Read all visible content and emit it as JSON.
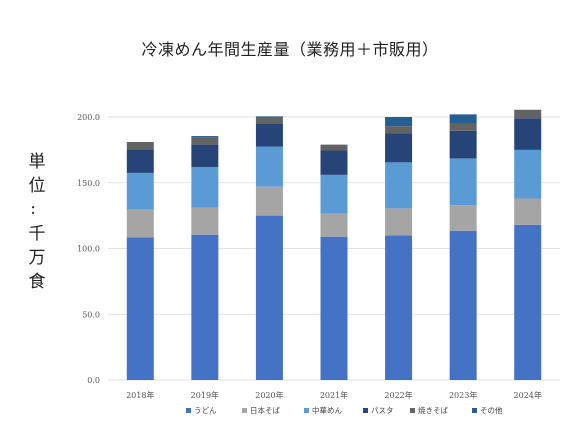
{
  "chart_data": {
    "type": "bar",
    "stacked": true,
    "title": "冷凍めん年間生産量（業務用＋市販用）",
    "ylabel": "単位：千万食",
    "categories": [
      "2018年",
      "2019年",
      "2020年",
      "2021年",
      "2022年",
      "2023年",
      "2024年"
    ],
    "ylim": [
      0,
      200
    ],
    "yticks": [
      "0.0",
      "50.0",
      "100.0",
      "150.0",
      "200.0"
    ],
    "grid": true,
    "legend_position": "bottom",
    "series": [
      {
        "name": "うどん",
        "color": "#4472c4",
        "values": [
          108.5,
          110.5,
          125.0,
          109.0,
          110.0,
          113.5,
          118.0
        ]
      },
      {
        "name": "日本そば",
        "color": "#a5a5a5",
        "values": [
          21.0,
          20.5,
          22.0,
          17.5,
          20.5,
          19.5,
          20.0
        ]
      },
      {
        "name": "中華めん",
        "color": "#5b9bd5",
        "values": [
          28.0,
          31.0,
          30.5,
          29.5,
          35.0,
          35.5,
          37.0
        ]
      },
      {
        "name": "パスタ",
        "color": "#264478",
        "values": [
          18.0,
          17.0,
          17.5,
          18.5,
          22.0,
          21.0,
          24.0
        ]
      },
      {
        "name": "焼きそば",
        "color": "#636363",
        "values": [
          5.5,
          5.5,
          5.0,
          4.5,
          5.5,
          5.5,
          6.5
        ]
      },
      {
        "name": "その他",
        "color": "#255e91",
        "values": [
          0.0,
          1.0,
          0.5,
          0.0,
          7.0,
          7.0,
          0.0
        ]
      }
    ]
  }
}
